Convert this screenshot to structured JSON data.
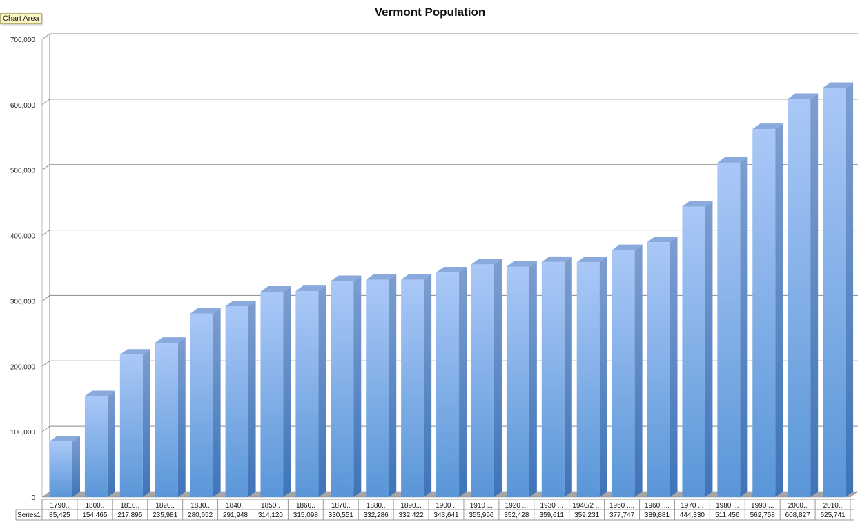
{
  "tooltip": "Chart Area",
  "chart_data": {
    "type": "bar",
    "title": "Vermont Population",
    "xlabel": "",
    "ylabel": "",
    "ylim": [
      0,
      700000
    ],
    "yticks": [
      "0",
      "100,000",
      "200,000",
      "300,000",
      "400,000",
      "500,000",
      "600,000",
      "700,000"
    ],
    "grid": true,
    "style": "3d-column",
    "colors": {
      "bar_light": "#aac8f7",
      "bar_dark": "#5a96d8",
      "floor": "#a6a6a6",
      "grid": "#8a8a8a"
    },
    "categories": [
      "1790..",
      "1800..",
      "1810..",
      "1820..",
      "1830..",
      "1840..",
      "1850..",
      "1860..",
      "1870..",
      "1880..",
      "1890...",
      "1900 ..",
      "1910 ...",
      "1920 ...",
      "1930 ...",
      "1940/2 ...",
      "1950 ....",
      "1960 ....",
      "1970 ...",
      "1980 ...",
      "1990 ...",
      "2000..",
      "2010.."
    ],
    "series": [
      {
        "name": "Series1",
        "values": [
          85425,
          154465,
          217895,
          235981,
          280652,
          291948,
          314120,
          315098,
          330551,
          332286,
          332422,
          343641,
          355956,
          352428,
          359611,
          359231,
          377747,
          389881,
          444330,
          511456,
          562758,
          608827,
          625741
        ],
        "labels": [
          "85,425",
          "154,465",
          "217,895",
          "235,981",
          "280,652",
          "291,948",
          "314,120",
          "315,098",
          "330,551",
          "332,286",
          "332,422",
          "343,641",
          "355,956",
          "352,428",
          "359,611",
          "359,231",
          "377,747",
          "389,881",
          "444,330",
          "511,456",
          "562,758",
          "608,827",
          "625,741"
        ]
      }
    ]
  }
}
